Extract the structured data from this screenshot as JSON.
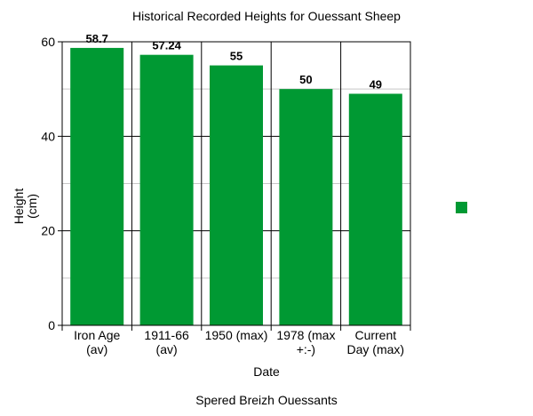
{
  "chart_data": {
    "type": "bar",
    "title": "Historical Recorded Heights for Ouessant Sheep",
    "xlabel": "Date",
    "ylabel": [
      "Height",
      "(cm)"
    ],
    "caption": "Spered Breizh Ouessants",
    "categories": [
      [
        "Iron Age",
        "(av)"
      ],
      [
        "1911-66",
        "(av)"
      ],
      [
        "1950 (max)"
      ],
      [
        "1978 (max",
        "+:-)"
      ],
      [
        "Current",
        "Day (max)"
      ]
    ],
    "values": [
      58.7,
      57.24,
      55,
      50,
      49
    ],
    "value_labels": [
      "58.7",
      "57.24",
      "55",
      "50",
      "49"
    ],
    "yticks": [
      0,
      20,
      40,
      60
    ],
    "ylim": [
      0,
      60
    ],
    "grid": true,
    "bar_color": "#009933",
    "legend_position": "right",
    "legend_swatch_color": "#009933"
  }
}
